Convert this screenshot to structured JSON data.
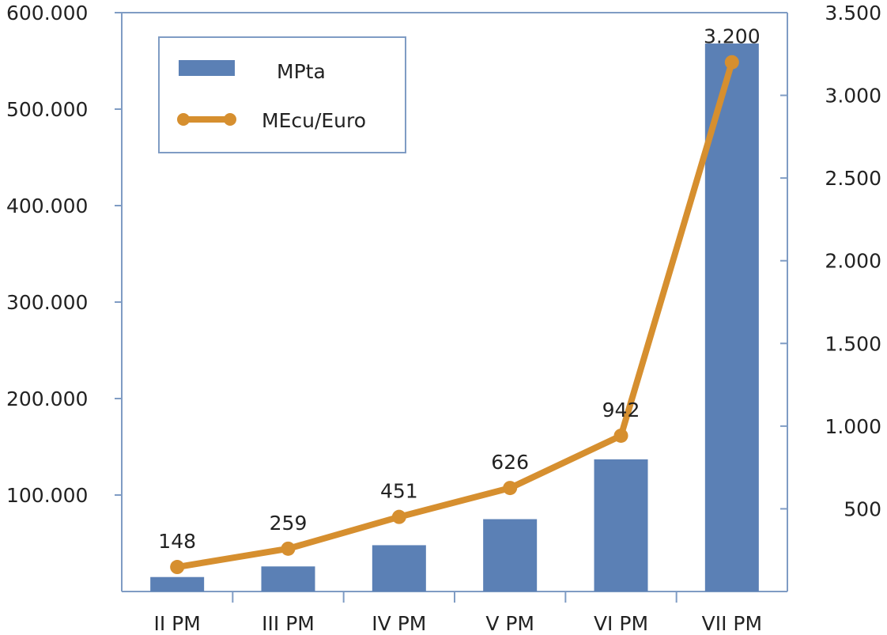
{
  "chart_data": {
    "type": "bar+line",
    "categories": [
      "II PM",
      "III PM",
      "IV PM",
      "V PM",
      "VI PM",
      "VII PM"
    ],
    "series": [
      {
        "name": "MPta",
        "type": "bar",
        "axis": "left",
        "color": "#5b80b5",
        "values": [
          15000,
          26000,
          48000,
          75000,
          137000,
          568000
        ]
      },
      {
        "name": "MEcu/Euro",
        "type": "line",
        "axis": "right",
        "color": "#d68f2f",
        "values": [
          148,
          259,
          451,
          626,
          942,
          3200
        ],
        "data_labels": [
          "148",
          "259",
          "451",
          "626",
          "942",
          "3.200"
        ]
      }
    ],
    "y_left": {
      "ylim": [
        0,
        600000
      ],
      "ticks": [
        100000,
        200000,
        300000,
        400000,
        500000,
        600000
      ],
      "tick_labels": [
        "100.000",
        "200.000",
        "300.000",
        "400.000",
        "500.000",
        "600.000"
      ]
    },
    "y_right": {
      "ylim": [
        0,
        3500
      ],
      "ticks": [
        500,
        1000,
        1500,
        2000,
        2500,
        3000,
        3500
      ],
      "tick_labels": [
        "500",
        "1.000",
        "1.500",
        "2.000",
        "2.500",
        "3.000",
        "3.500"
      ]
    },
    "legend": {
      "placement": "top-left",
      "entries": [
        "MPta",
        "MEcu/Euro"
      ]
    },
    "grid": false,
    "axis_color": "#7f9cc4"
  }
}
